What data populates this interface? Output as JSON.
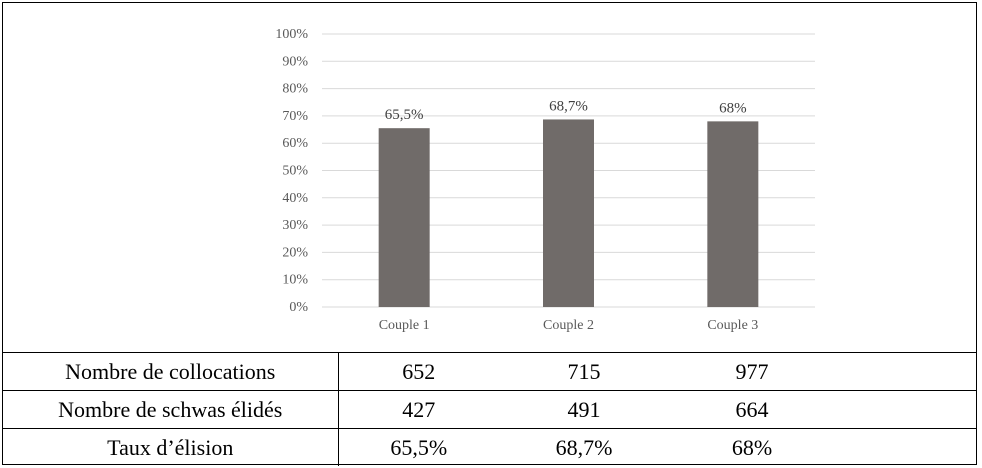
{
  "chart_data": {
    "type": "bar",
    "categories": [
      "Couple 1",
      "Couple 2",
      "Couple 3"
    ],
    "values": [
      65.5,
      68.7,
      68
    ],
    "data_labels": [
      "65,5%",
      "68,7%",
      "68%"
    ],
    "ylim": [
      0,
      100
    ],
    "yticks": [
      "0%",
      "10%",
      "20%",
      "30%",
      "40%",
      "50%",
      "60%",
      "70%",
      "80%",
      "90%",
      "100%"
    ],
    "title": "",
    "xlabel": "",
    "ylabel": "",
    "grid": true,
    "bar_color": "#706b69",
    "grid_color": "#d9d9d9",
    "table": {
      "rows": [
        {
          "label": "Nombre de collocations",
          "values": [
            "652",
            "715",
            "977"
          ]
        },
        {
          "label": "Nombre de schwas élidés",
          "values": [
            "427",
            "491",
            "664"
          ]
        },
        {
          "label": "Taux d’élision",
          "values": [
            "65,5%",
            "68,7%",
            "68%"
          ]
        }
      ]
    }
  }
}
